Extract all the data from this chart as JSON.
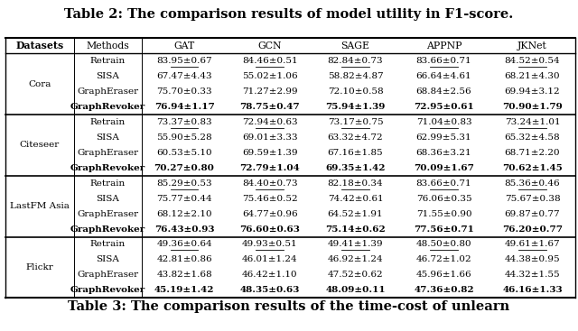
{
  "title1": "Table 2: The comparison results of model utility in F1-score.",
  "title2": "Table 3: The comparison results of the time-cost of unlearn",
  "col_headers": [
    "Datasets",
    "Methods",
    "GAT",
    "GCN",
    "SAGE",
    "APPNP",
    "JKNet"
  ],
  "datasets": [
    "Cora",
    "Citeseer",
    "LastFM Asia",
    "Flickr"
  ],
  "methods": [
    "Retrain",
    "SISA",
    "GraphEraser",
    "GraphRevoker"
  ],
  "data": {
    "Cora": {
      "Retrain": [
        "83.95±0.67",
        "84.46±0.51",
        "82.84±0.73",
        "83.66±0.71",
        "84.52±0.54"
      ],
      "SISA": [
        "67.47±4.43",
        "55.02±1.06",
        "58.82±4.87",
        "66.64±4.61",
        "68.21±4.30"
      ],
      "GraphEraser": [
        "75.70±0.33",
        "71.27±2.99",
        "72.10±0.58",
        "68.84±2.56",
        "69.94±3.12"
      ],
      "GraphRevoker": [
        "76.94±1.17",
        "78.75±0.47",
        "75.94±1.39",
        "72.95±0.61",
        "70.90±1.79"
      ]
    },
    "Citeseer": {
      "Retrain": [
        "73.37±0.83",
        "72.94±0.63",
        "73.17±0.75",
        "71.04±0.83",
        "73.24±1.01"
      ],
      "SISA": [
        "55.90±5.28",
        "69.01±3.33",
        "63.32±4.72",
        "62.99±5.31",
        "65.32±4.58"
      ],
      "GraphEraser": [
        "60.53±5.10",
        "69.59±1.39",
        "67.16±1.85",
        "68.36±3.21",
        "68.71±2.20"
      ],
      "GraphRevoker": [
        "70.27±0.80",
        "72.79±1.04",
        "69.35±1.42",
        "70.09±1.67",
        "70.62±1.45"
      ]
    },
    "LastFM Asia": {
      "Retrain": [
        "85.29±0.53",
        "84.40±0.73",
        "82.18±0.34",
        "83.66±0.71",
        "85.36±0.46"
      ],
      "SISA": [
        "75.77±0.44",
        "75.46±0.52",
        "74.42±0.61",
        "76.06±0.35",
        "75.67±0.38"
      ],
      "GraphEraser": [
        "68.12±2.10",
        "64.77±0.96",
        "64.52±1.91",
        "71.55±0.90",
        "69.87±0.77"
      ],
      "GraphRevoker": [
        "76.43±0.93",
        "76.60±0.63",
        "75.14±0.62",
        "77.56±0.71",
        "76.20±0.77"
      ]
    },
    "Flickr": {
      "Retrain": [
        "49.36±0.64",
        "49.93±0.51",
        "49.41±1.39",
        "48.50±0.80",
        "49.61±1.67"
      ],
      "SISA": [
        "42.81±0.86",
        "46.01±1.24",
        "46.92±1.24",
        "46.72±1.02",
        "44.38±0.95"
      ],
      "GraphEraser": [
        "43.82±1.68",
        "46.42±1.10",
        "47.52±0.62",
        "45.96±1.66",
        "44.32±1.55"
      ],
      "GraphRevoker": [
        "45.19±1.42",
        "48.35±0.63",
        "48.09±0.11",
        "47.36±0.82",
        "46.16±1.33"
      ]
    }
  },
  "underline_cells": {
    "Cora": {
      "Retrain": [
        0,
        1,
        2,
        3,
        4
      ]
    },
    "Citeseer": {
      "Retrain": [
        0,
        1,
        2,
        3,
        4
      ]
    },
    "LastFM Asia": {
      "Retrain": [
        0,
        1,
        2,
        3,
        4
      ]
    },
    "Flickr": {
      "Retrain": [
        0,
        1,
        2,
        3,
        4
      ]
    }
  },
  "bold_rows": [
    "GraphRevoker"
  ],
  "bg_color": "#ffffff",
  "header_bg": "#d9d9d9",
  "font_size": 7.5,
  "title_font_size": 10.5
}
